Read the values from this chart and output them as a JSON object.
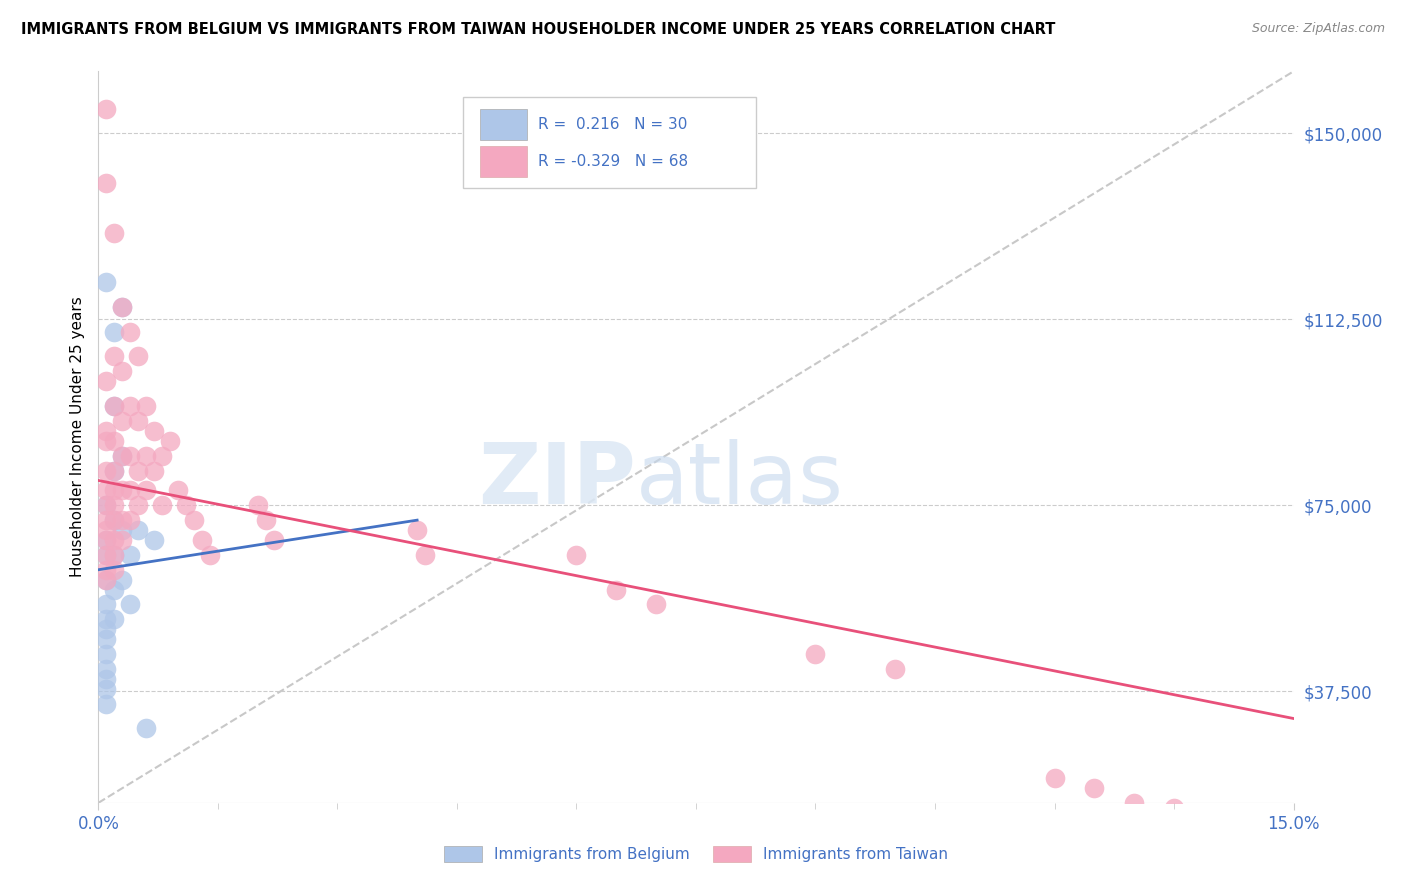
{
  "title": "IMMIGRANTS FROM BELGIUM VS IMMIGRANTS FROM TAIWAN HOUSEHOLDER INCOME UNDER 25 YEARS CORRELATION CHART",
  "source": "Source: ZipAtlas.com",
  "ylabel": "Householder Income Under 25 years",
  "xlim": [
    0.0,
    0.15
  ],
  "ylim": [
    15000,
    162500
  ],
  "yticks": [
    37500,
    75000,
    112500,
    150000
  ],
  "ytick_labels": [
    "$37,500",
    "$75,000",
    "$112,500",
    "$150,000"
  ],
  "xticks": [
    0.0,
    0.15
  ],
  "xtick_labels": [
    "0.0%",
    "15.0%"
  ],
  "background_color": "#ffffff",
  "grid_color": "#cccccc",
  "belgium_color": "#aec6e8",
  "taiwan_color": "#f4a8c0",
  "belgium_line_color": "#4472c4",
  "taiwan_line_color": "#e8507a",
  "diag_color": "#c8c8c8",
  "r_belgium": 0.216,
  "n_belgium": 30,
  "r_taiwan": -0.329,
  "n_taiwan": 68,
  "label_color": "#4472c4",
  "watermark_zip": "ZIP",
  "watermark_atlas": "atlas",
  "belgium_scatter": [
    [
      0.001,
      120000
    ],
    [
      0.001,
      75000
    ],
    [
      0.001,
      68000
    ],
    [
      0.001,
      65000
    ],
    [
      0.001,
      60000
    ],
    [
      0.001,
      55000
    ],
    [
      0.001,
      52000
    ],
    [
      0.001,
      50000
    ],
    [
      0.001,
      48000
    ],
    [
      0.001,
      45000
    ],
    [
      0.001,
      42000
    ],
    [
      0.001,
      40000
    ],
    [
      0.001,
      38000
    ],
    [
      0.001,
      35000
    ],
    [
      0.002,
      110000
    ],
    [
      0.002,
      95000
    ],
    [
      0.002,
      82000
    ],
    [
      0.002,
      72000
    ],
    [
      0.002,
      65000
    ],
    [
      0.002,
      58000
    ],
    [
      0.002,
      52000
    ],
    [
      0.003,
      115000
    ],
    [
      0.003,
      85000
    ],
    [
      0.003,
      70000
    ],
    [
      0.003,
      60000
    ],
    [
      0.004,
      65000
    ],
    [
      0.004,
      55000
    ],
    [
      0.005,
      70000
    ],
    [
      0.006,
      30000
    ],
    [
      0.007,
      68000
    ]
  ],
  "taiwan_scatter": [
    [
      0.001,
      155000
    ],
    [
      0.001,
      140000
    ],
    [
      0.001,
      100000
    ],
    [
      0.001,
      90000
    ],
    [
      0.001,
      88000
    ],
    [
      0.001,
      82000
    ],
    [
      0.001,
      78000
    ],
    [
      0.001,
      75000
    ],
    [
      0.001,
      72000
    ],
    [
      0.001,
      70000
    ],
    [
      0.001,
      68000
    ],
    [
      0.001,
      65000
    ],
    [
      0.001,
      62000
    ],
    [
      0.001,
      60000
    ],
    [
      0.002,
      130000
    ],
    [
      0.002,
      105000
    ],
    [
      0.002,
      95000
    ],
    [
      0.002,
      88000
    ],
    [
      0.002,
      82000
    ],
    [
      0.002,
      78000
    ],
    [
      0.002,
      75000
    ],
    [
      0.002,
      72000
    ],
    [
      0.002,
      68000
    ],
    [
      0.002,
      65000
    ],
    [
      0.002,
      62000
    ],
    [
      0.003,
      115000
    ],
    [
      0.003,
      102000
    ],
    [
      0.003,
      92000
    ],
    [
      0.003,
      85000
    ],
    [
      0.003,
      78000
    ],
    [
      0.003,
      72000
    ],
    [
      0.003,
      68000
    ],
    [
      0.004,
      110000
    ],
    [
      0.004,
      95000
    ],
    [
      0.004,
      85000
    ],
    [
      0.004,
      78000
    ],
    [
      0.004,
      72000
    ],
    [
      0.005,
      105000
    ],
    [
      0.005,
      92000
    ],
    [
      0.005,
      82000
    ],
    [
      0.005,
      75000
    ],
    [
      0.006,
      95000
    ],
    [
      0.006,
      85000
    ],
    [
      0.006,
      78000
    ],
    [
      0.007,
      90000
    ],
    [
      0.007,
      82000
    ],
    [
      0.008,
      85000
    ],
    [
      0.008,
      75000
    ],
    [
      0.009,
      88000
    ],
    [
      0.01,
      78000
    ],
    [
      0.011,
      75000
    ],
    [
      0.012,
      72000
    ],
    [
      0.013,
      68000
    ],
    [
      0.014,
      65000
    ],
    [
      0.02,
      75000
    ],
    [
      0.021,
      72000
    ],
    [
      0.022,
      68000
    ],
    [
      0.04,
      70000
    ],
    [
      0.041,
      65000
    ],
    [
      0.06,
      65000
    ],
    [
      0.065,
      58000
    ],
    [
      0.07,
      55000
    ],
    [
      0.09,
      45000
    ],
    [
      0.1,
      42000
    ],
    [
      0.12,
      20000
    ],
    [
      0.125,
      18000
    ],
    [
      0.13,
      15000
    ],
    [
      0.135,
      14000
    ]
  ],
  "belgium_trend": [
    0.0,
    0.04,
    62000,
    72000
  ],
  "taiwan_trend": [
    0.0,
    0.15,
    80000,
    32000
  ],
  "diag_trend": [
    0.0,
    0.15,
    15000,
    162500
  ]
}
